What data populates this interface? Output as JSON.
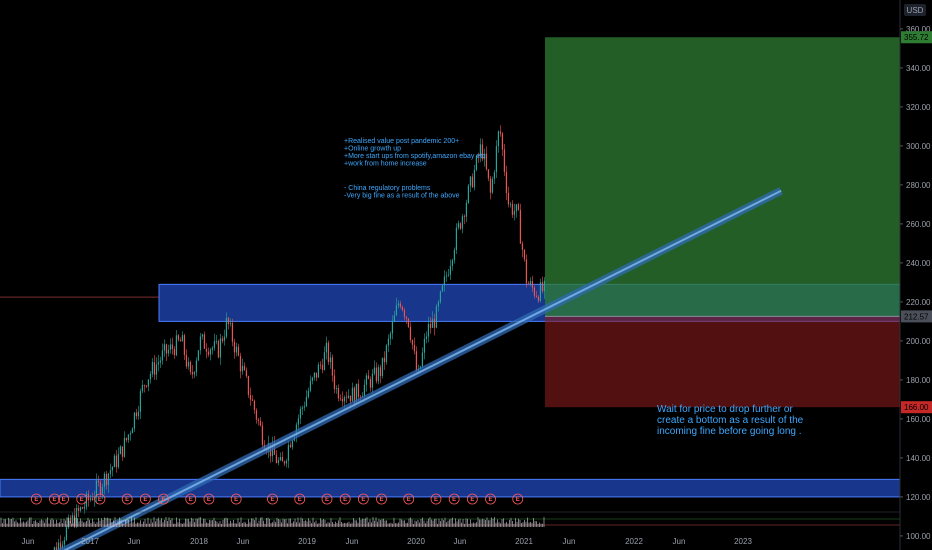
{
  "currency_label": "USD",
  "colors": {
    "bull": "#26a69a",
    "bear": "#ef5350",
    "zone": "#2962ff",
    "trend": "#4f8fd6",
    "target": "#2e7d32",
    "stop": "#8b1a1a",
    "note": "#3da8ff",
    "event": "#ff5b5b"
  },
  "annotations": {
    "notes_1": [
      "+Realised value post pandemic 200+",
      "+Online growth up",
      "+More start ups from spotify,amazon ebay etc",
      "+work from home increase"
    ],
    "notes_2": [
      "- China regulatory problems",
      "-Very big fine as a result of the above"
    ],
    "notes_3": [
      "Wait for price to drop further or",
      "create a bottom as a result of the",
      "incoming fine before going long ."
    ]
  },
  "event_marker_label": "E",
  "chart_data": {
    "type": "candlestick",
    "ylim": [
      102,
      362
    ],
    "y_ticks": [
      "360.00",
      "340.00",
      "320.00",
      "300.00",
      "280.00",
      "260.00",
      "240.00",
      "220.00",
      "200.00",
      "180.00",
      "160.00",
      "140.00",
      "120.00",
      "100.00"
    ],
    "x_labels": [
      "Jun",
      "2017",
      "Jun",
      "2018",
      "Jun",
      "2019",
      "Jun",
      "2020",
      "Jun",
      "2021",
      "Jun",
      "2022",
      "Jun",
      "2023"
    ],
    "price_tags": {
      "target": "355.72",
      "entry": "212.57",
      "stop": "166.00"
    },
    "support_zones": [
      [
        210,
        229
      ],
      [
        120,
        129
      ]
    ],
    "trendline": {
      "from": [
        "2016-11",
        90
      ],
      "to": [
        "2023-07",
        277
      ]
    },
    "position": {
      "entry": 212.57,
      "target": 355.72,
      "stop": 166.0,
      "start": "2021-05",
      "end": "2023-07"
    },
    "price_path": [
      [
        "2016-10",
        85
      ],
      [
        "2017-01",
        108
      ],
      [
        "2017-04",
        126
      ],
      [
        "2017-06",
        140
      ],
      [
        "2017-07",
        150
      ],
      [
        "2017-09",
        180
      ],
      [
        "2017-11",
        193
      ],
      [
        "2018-01",
        200
      ],
      [
        "2018-02",
        180
      ],
      [
        "2018-03",
        200
      ],
      [
        "2018-05",
        195
      ],
      [
        "2018-06",
        210
      ],
      [
        "2018-08",
        180
      ],
      [
        "2018-10",
        150
      ],
      [
        "2018-12",
        135
      ],
      [
        "2019-01",
        150
      ],
      [
        "2019-03",
        175
      ],
      [
        "2019-05",
        195
      ],
      [
        "2019-06",
        175
      ],
      [
        "2019-08",
        172
      ],
      [
        "2019-11",
        185
      ],
      [
        "2020-01",
        222
      ],
      [
        "2020-02",
        210
      ],
      [
        "2020-03",
        180
      ],
      [
        "2020-04",
        205
      ],
      [
        "2020-05",
        212
      ],
      [
        "2020-07",
        250
      ],
      [
        "2020-09",
        283
      ],
      [
        "2020-10",
        300
      ],
      [
        "2020-11",
        275
      ],
      [
        "2020-12",
        310
      ],
      [
        "2021-01",
        270
      ],
      [
        "2021-02",
        265
      ],
      [
        "2021-03",
        230
      ],
      [
        "2021-04",
        225
      ],
      [
        "2021-05",
        226
      ]
    ],
    "event_markers": [
      "2016-09",
      "2016-11",
      "2016-12",
      "2017-02",
      "2017-04",
      "2017-07",
      "2017-09",
      "2017-11",
      "2018-02",
      "2018-04",
      "2018-07",
      "2018-11",
      "2019-02",
      "2019-05",
      "2019-07",
      "2019-09",
      "2019-11",
      "2020-02",
      "2020-05",
      "2020-07",
      "2020-09",
      "2020-11",
      "2021-02"
    ]
  }
}
